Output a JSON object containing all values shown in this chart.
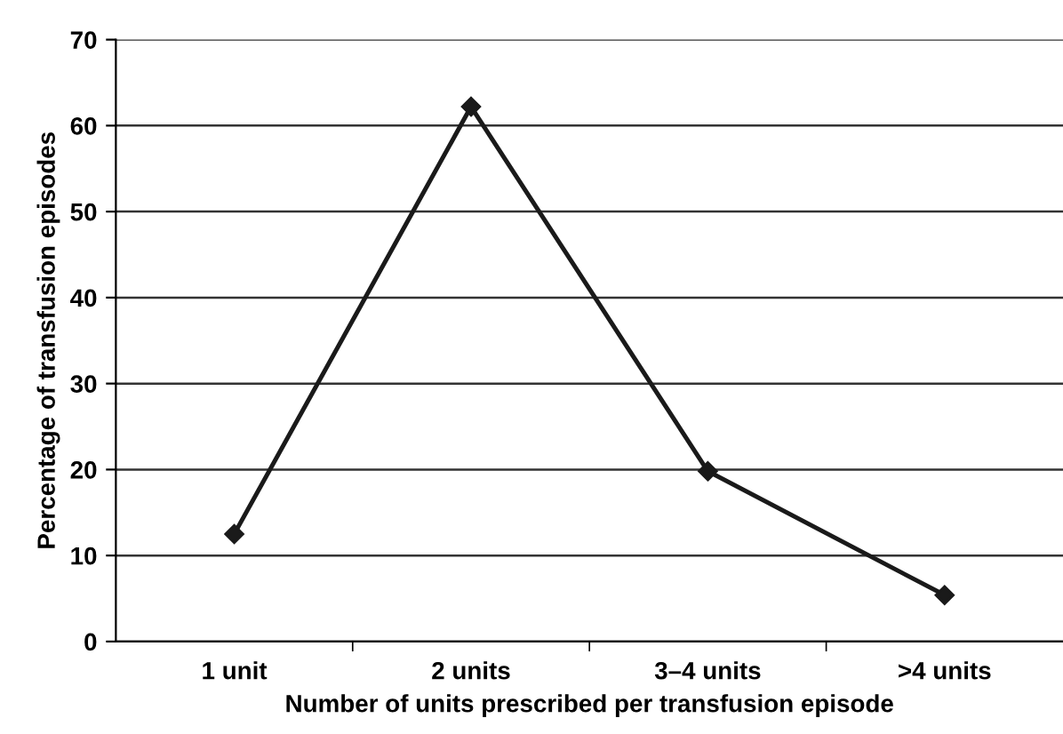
{
  "chart_data": {
    "type": "line",
    "xlabel": "Number of units prescribed per transfusion episode",
    "ylabel": "Percentage of transfusion episodes",
    "categories": [
      "1 unit",
      "2 units",
      "3–4 units",
      ">4 units"
    ],
    "series": [
      {
        "color": "#1a1a1a",
        "values": [
          12.5,
          62.2,
          19.8,
          5.4
        ]
      }
    ],
    "ylim": [
      0,
      70
    ],
    "yticks": [
      0,
      10,
      20,
      30,
      40,
      50,
      60,
      70
    ],
    "grid": "y",
    "marker": "diamond",
    "line_style": "solid"
  }
}
